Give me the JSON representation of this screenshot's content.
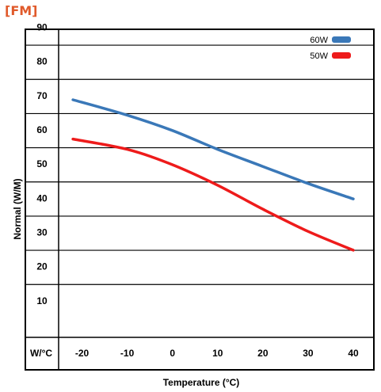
{
  "header": {
    "title": "[FM]"
  },
  "chart_data": {
    "type": "line",
    "title": "[FM]",
    "xlabel": "Temperature (°C)",
    "ylabel": "Normal (W/M)",
    "corner_label": "W/°C",
    "x_categories": [
      -20,
      -10,
      0,
      10,
      20,
      30,
      40
    ],
    "x_tick_labels": [
      "-20",
      "-10",
      "0",
      "10",
      "20",
      "30",
      "40"
    ],
    "y_ticks": [
      10,
      20,
      30,
      40,
      50,
      60,
      70,
      80,
      90
    ],
    "y_tick_labels": [
      "10",
      "20",
      "30",
      "40",
      "50",
      "60",
      "70",
      "80",
      "90"
    ],
    "ylim": [
      0,
      95
    ],
    "grid": true,
    "legend_position": "top-right",
    "series": [
      {
        "name": "60W",
        "color": "#3a78b8",
        "x": [
          -22,
          -10,
          0,
          10,
          20,
          30,
          40
        ],
        "y": [
          69.5,
          65,
          60.5,
          55,
          50,
          45,
          40.5
        ]
      },
      {
        "name": "50W",
        "color": "#ee1b1b",
        "x": [
          -22,
          -10,
          0,
          10,
          20,
          30,
          40
        ],
        "y": [
          58,
          55,
          50.5,
          44.5,
          37.5,
          31,
          25.5
        ]
      }
    ]
  }
}
